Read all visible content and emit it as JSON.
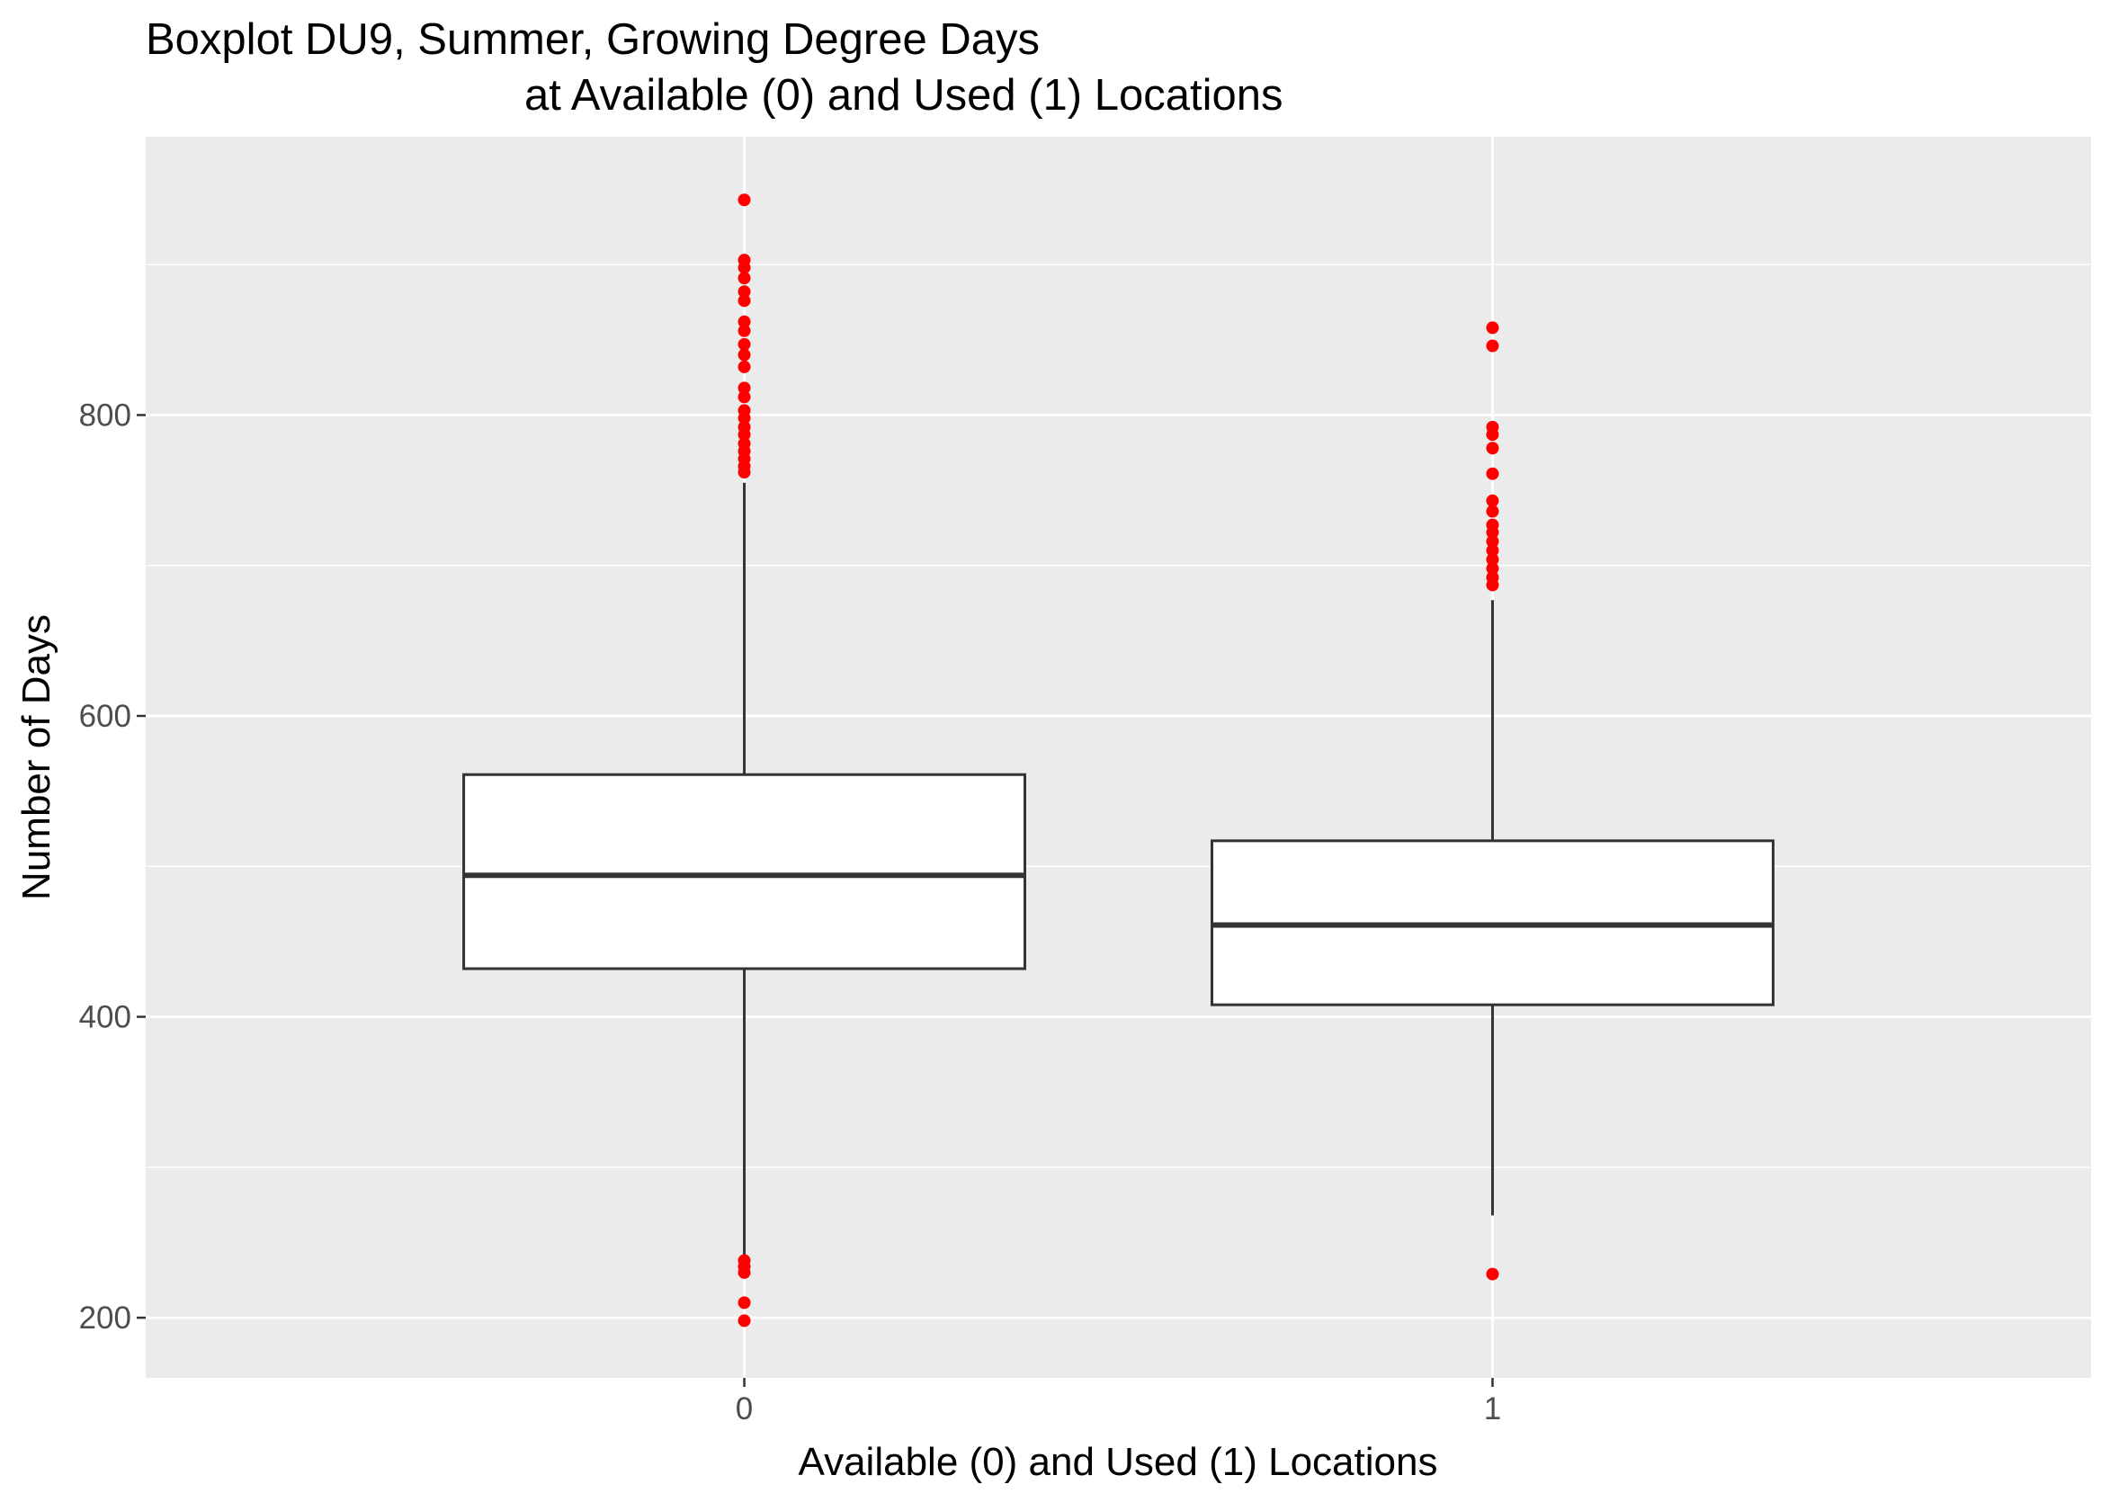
{
  "chart_data": {
    "type": "boxplot",
    "title_line1": "Boxplot DU9, Summer, Growing Degree Days",
    "title_line2": "at Available (0) and Used (1) Locations",
    "xlabel": "Available (0) and Used (1) Locations",
    "ylabel": "Number of Days",
    "categories": [
      "0",
      "1"
    ],
    "ylim": [
      160,
      985
    ],
    "yticks": [
      200,
      400,
      600,
      800
    ],
    "ytick_labels": [
      "200",
      "400",
      "600",
      "800"
    ],
    "grid": true,
    "colors": {
      "panel": "#EBEBEB",
      "grid": "#FFFFFF",
      "box_fill": "#FFFFFF",
      "box_line": "#333333",
      "outlier": "#FF0000",
      "tick_label": "#4D4D4D"
    },
    "boxes": [
      {
        "category": "0",
        "whisker_low": 241,
        "q1": 432,
        "median": 494,
        "q3": 561,
        "whisker_high": 755,
        "outliers": [
          943,
          903,
          898,
          891,
          882,
          876,
          862,
          856,
          847,
          840,
          832,
          818,
          812,
          803,
          798,
          792,
          787,
          781,
          776,
          771,
          766,
          762,
          238,
          234,
          230,
          210,
          198
        ]
      },
      {
        "category": "1",
        "whisker_low": 268,
        "q1": 408,
        "median": 461,
        "q3": 517,
        "whisker_high": 677,
        "outliers": [
          858,
          846,
          792,
          787,
          778,
          761,
          743,
          736,
          727,
          722,
          716,
          710,
          704,
          698,
          692,
          687,
          229
        ]
      }
    ]
  }
}
